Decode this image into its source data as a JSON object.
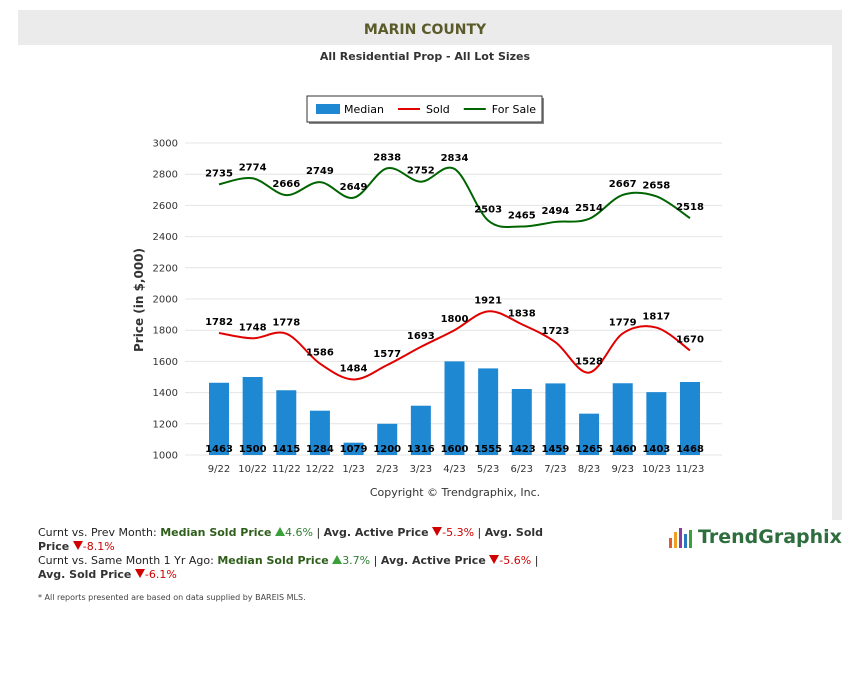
{
  "header": {
    "title": "MARIN COUNTY"
  },
  "chart_data": {
    "type": "combo",
    "subtitle": "All Residential Prop - All Lot Sizes",
    "categories": [
      "9/22",
      "10/22",
      "11/22",
      "12/22",
      "1/23",
      "2/23",
      "3/23",
      "4/23",
      "5/23",
      "6/23",
      "7/23",
      "8/23",
      "9/23",
      "10/23",
      "11/23"
    ],
    "series": [
      {
        "name": "Median",
        "type": "bar",
        "color": "#1e88d3",
        "values": [
          1463,
          1500,
          1415,
          1284,
          1079,
          1200,
          1316,
          1600,
          1555,
          1423,
          1459,
          1265,
          1460,
          1403,
          1468
        ]
      },
      {
        "name": "Sold",
        "type": "line",
        "color": "#e00000",
        "values": [
          1782,
          1748,
          1778,
          1586,
          1484,
          1577,
          1693,
          1800,
          1921,
          1838,
          1723,
          1528,
          1779,
          1817,
          1670
        ]
      },
      {
        "name": "For Sale",
        "type": "line",
        "color": "#006400",
        "values": [
          2735,
          2774,
          2666,
          2749,
          2649,
          2838,
          2752,
          2834,
          2503,
          2465,
          2494,
          2514,
          2667,
          2658,
          2518
        ]
      }
    ],
    "ylabel": "Price (in $,000)",
    "ylim": [
      1000,
      3000
    ],
    "yticks": [
      1000,
      1200,
      1400,
      1600,
      1800,
      2000,
      2200,
      2400,
      2600,
      2800,
      3000
    ],
    "grid": true,
    "legend": "top",
    "copyright": "Copyright © Trendgraphix, Inc."
  },
  "summary": [
    {
      "prefix": "Curnt vs. Prev Month:",
      "items": [
        {
          "label": "Median Sold Price",
          "change": "4.6%"
        },
        {
          "label": "Avg. Active Price",
          "change": "-5.3%"
        },
        {
          "label": "Avg. Sold Price",
          "change": "-8.1%"
        }
      ]
    },
    {
      "prefix": "Curnt vs. Same Month 1 Yr Ago:",
      "items": [
        {
          "label": "Median Sold Price",
          "change": "3.7%"
        },
        {
          "label": "Avg. Active Price",
          "change": "-5.6%"
        },
        {
          "label": "Avg. Sold Price",
          "change": "-6.1%"
        }
      ]
    }
  ],
  "note": "* All reports presented are based on data supplied by BAREIS MLS.",
  "logo": "TrendGraphix"
}
